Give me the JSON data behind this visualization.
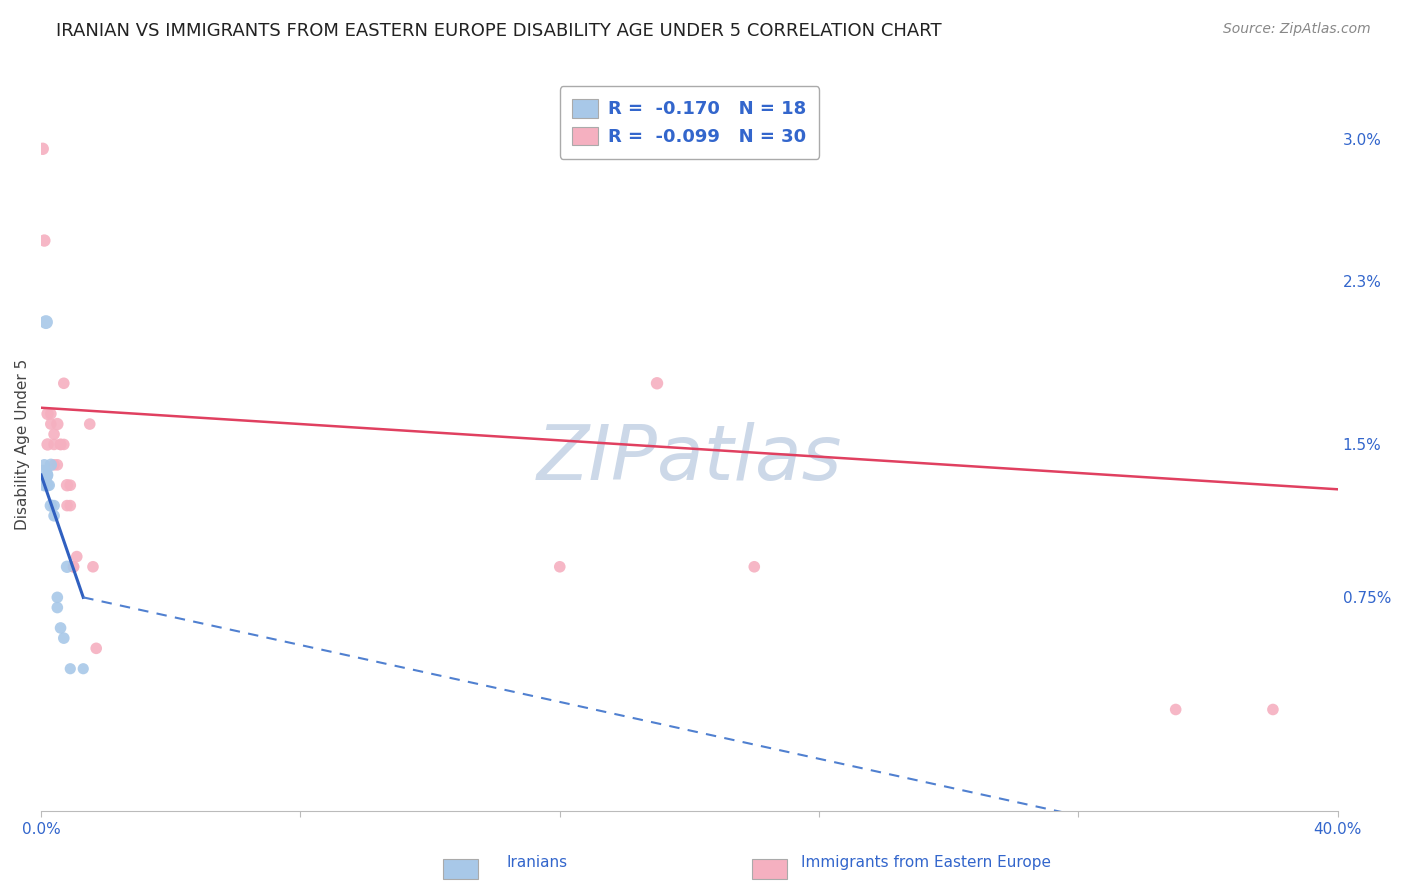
{
  "title": "IRANIAN VS IMMIGRANTS FROM EASTERN EUROPE DISABILITY AGE UNDER 5 CORRELATION CHART",
  "source": "Source: ZipAtlas.com",
  "ylabel": "Disability Age Under 5",
  "xlim": [
    0.0,
    0.4
  ],
  "ylim": [
    -0.003,
    0.033
  ],
  "yticks": [
    0.0,
    0.0075,
    0.015,
    0.023,
    0.03
  ],
  "ytick_labels": [
    "",
    "0.75%",
    "1.5%",
    "2.3%",
    "3.0%"
  ],
  "xticks": [
    0.0,
    0.08,
    0.16,
    0.24,
    0.32,
    0.4
  ],
  "xtick_labels": [
    "0.0%",
    "",
    "",
    "",
    "",
    "40.0%"
  ],
  "iranians": {
    "R": -0.17,
    "N": 18,
    "color": "#a8c8e8",
    "line_color": "#3060c0",
    "x": [
      0.0005,
      0.001,
      0.001,
      0.0015,
      0.002,
      0.002,
      0.0025,
      0.003,
      0.003,
      0.004,
      0.004,
      0.005,
      0.005,
      0.006,
      0.007,
      0.008,
      0.009,
      0.013
    ],
    "y": [
      0.0135,
      0.013,
      0.014,
      0.021,
      0.013,
      0.0135,
      0.013,
      0.012,
      0.014,
      0.012,
      0.0115,
      0.0075,
      0.007,
      0.006,
      0.0055,
      0.009,
      0.004,
      0.004
    ],
    "sizes": [
      220,
      80,
      70,
      100,
      80,
      70,
      70,
      80,
      80,
      70,
      70,
      70,
      70,
      70,
      70,
      80,
      65,
      65
    ]
  },
  "eastern_europe": {
    "R": -0.099,
    "N": 30,
    "color": "#f5b0c0",
    "line_color": "#e04060",
    "x": [
      0.0005,
      0.001,
      0.002,
      0.002,
      0.003,
      0.003,
      0.004,
      0.004,
      0.004,
      0.005,
      0.005,
      0.006,
      0.006,
      0.007,
      0.007,
      0.008,
      0.008,
      0.009,
      0.009,
      0.01,
      0.01,
      0.011,
      0.015,
      0.016,
      0.017,
      0.16,
      0.19,
      0.22,
      0.35,
      0.38
    ],
    "y": [
      0.0295,
      0.025,
      0.0165,
      0.015,
      0.0165,
      0.016,
      0.015,
      0.0155,
      0.014,
      0.016,
      0.014,
      0.015,
      0.015,
      0.015,
      0.018,
      0.013,
      0.012,
      0.013,
      0.012,
      0.009,
      0.009,
      0.0095,
      0.016,
      0.009,
      0.005,
      0.009,
      0.018,
      0.009,
      0.002,
      0.002
    ],
    "sizes": [
      80,
      80,
      80,
      80,
      70,
      70,
      70,
      70,
      70,
      80,
      70,
      70,
      70,
      70,
      70,
      80,
      70,
      70,
      70,
      70,
      70,
      70,
      70,
      70,
      70,
      70,
      80,
      70,
      70,
      70
    ]
  },
  "iranians_trendline_solid": {
    "x_start": 0.0,
    "x_end": 0.013,
    "y_start": 0.0135,
    "y_end": 0.0075,
    "color": "#3060c0",
    "linestyle": "-",
    "linewidth": 2.2
  },
  "iranians_trendline_dash": {
    "x_start": 0.013,
    "x_end": 0.4,
    "y_start": 0.0075,
    "y_end": -0.006,
    "color": "#5080d0",
    "linestyle": "--",
    "linewidth": 1.5
  },
  "eastern_europe_trendline": {
    "x_start": 0.0,
    "x_end": 0.4,
    "y_start": 0.0168,
    "y_end": 0.0128,
    "color": "#e04060",
    "linestyle": "-",
    "linewidth": 1.8
  },
  "watermark": "ZIPatlas",
  "watermark_color": "#ccd8e8",
  "grid_color": "#dddddd",
  "background_color": "#ffffff",
  "legend_box_color_iranian": "#a8c8e8",
  "legend_box_color_eastern": "#f5b0c0",
  "legend_text_color": "#3366cc",
  "title_fontsize": 13,
  "axis_label_fontsize": 11,
  "tick_fontsize": 11,
  "source_fontsize": 10
}
